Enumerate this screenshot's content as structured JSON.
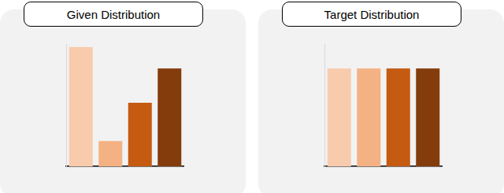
{
  "chart_data": [
    {
      "type": "bar",
      "title": "Given Distribution",
      "categories": [
        null,
        null,
        null,
        null
      ],
      "values": [
        156,
        33,
        83,
        128
      ],
      "colors": [
        "#f8cbad",
        "#f4b183",
        "#c55a11",
        "#843c0c"
      ],
      "ylim": [
        0,
        160
      ],
      "grid": false,
      "tick_labels": false
    },
    {
      "type": "bar",
      "title": "Target Distribution",
      "categories": [
        null,
        null,
        null,
        null
      ],
      "values": [
        128,
        128,
        128,
        128
      ],
      "colors": [
        "#f8cbad",
        "#f4b183",
        "#c55a11",
        "#843c0c"
      ],
      "ylim": [
        0,
        160
      ],
      "grid": false,
      "tick_labels": false
    }
  ]
}
